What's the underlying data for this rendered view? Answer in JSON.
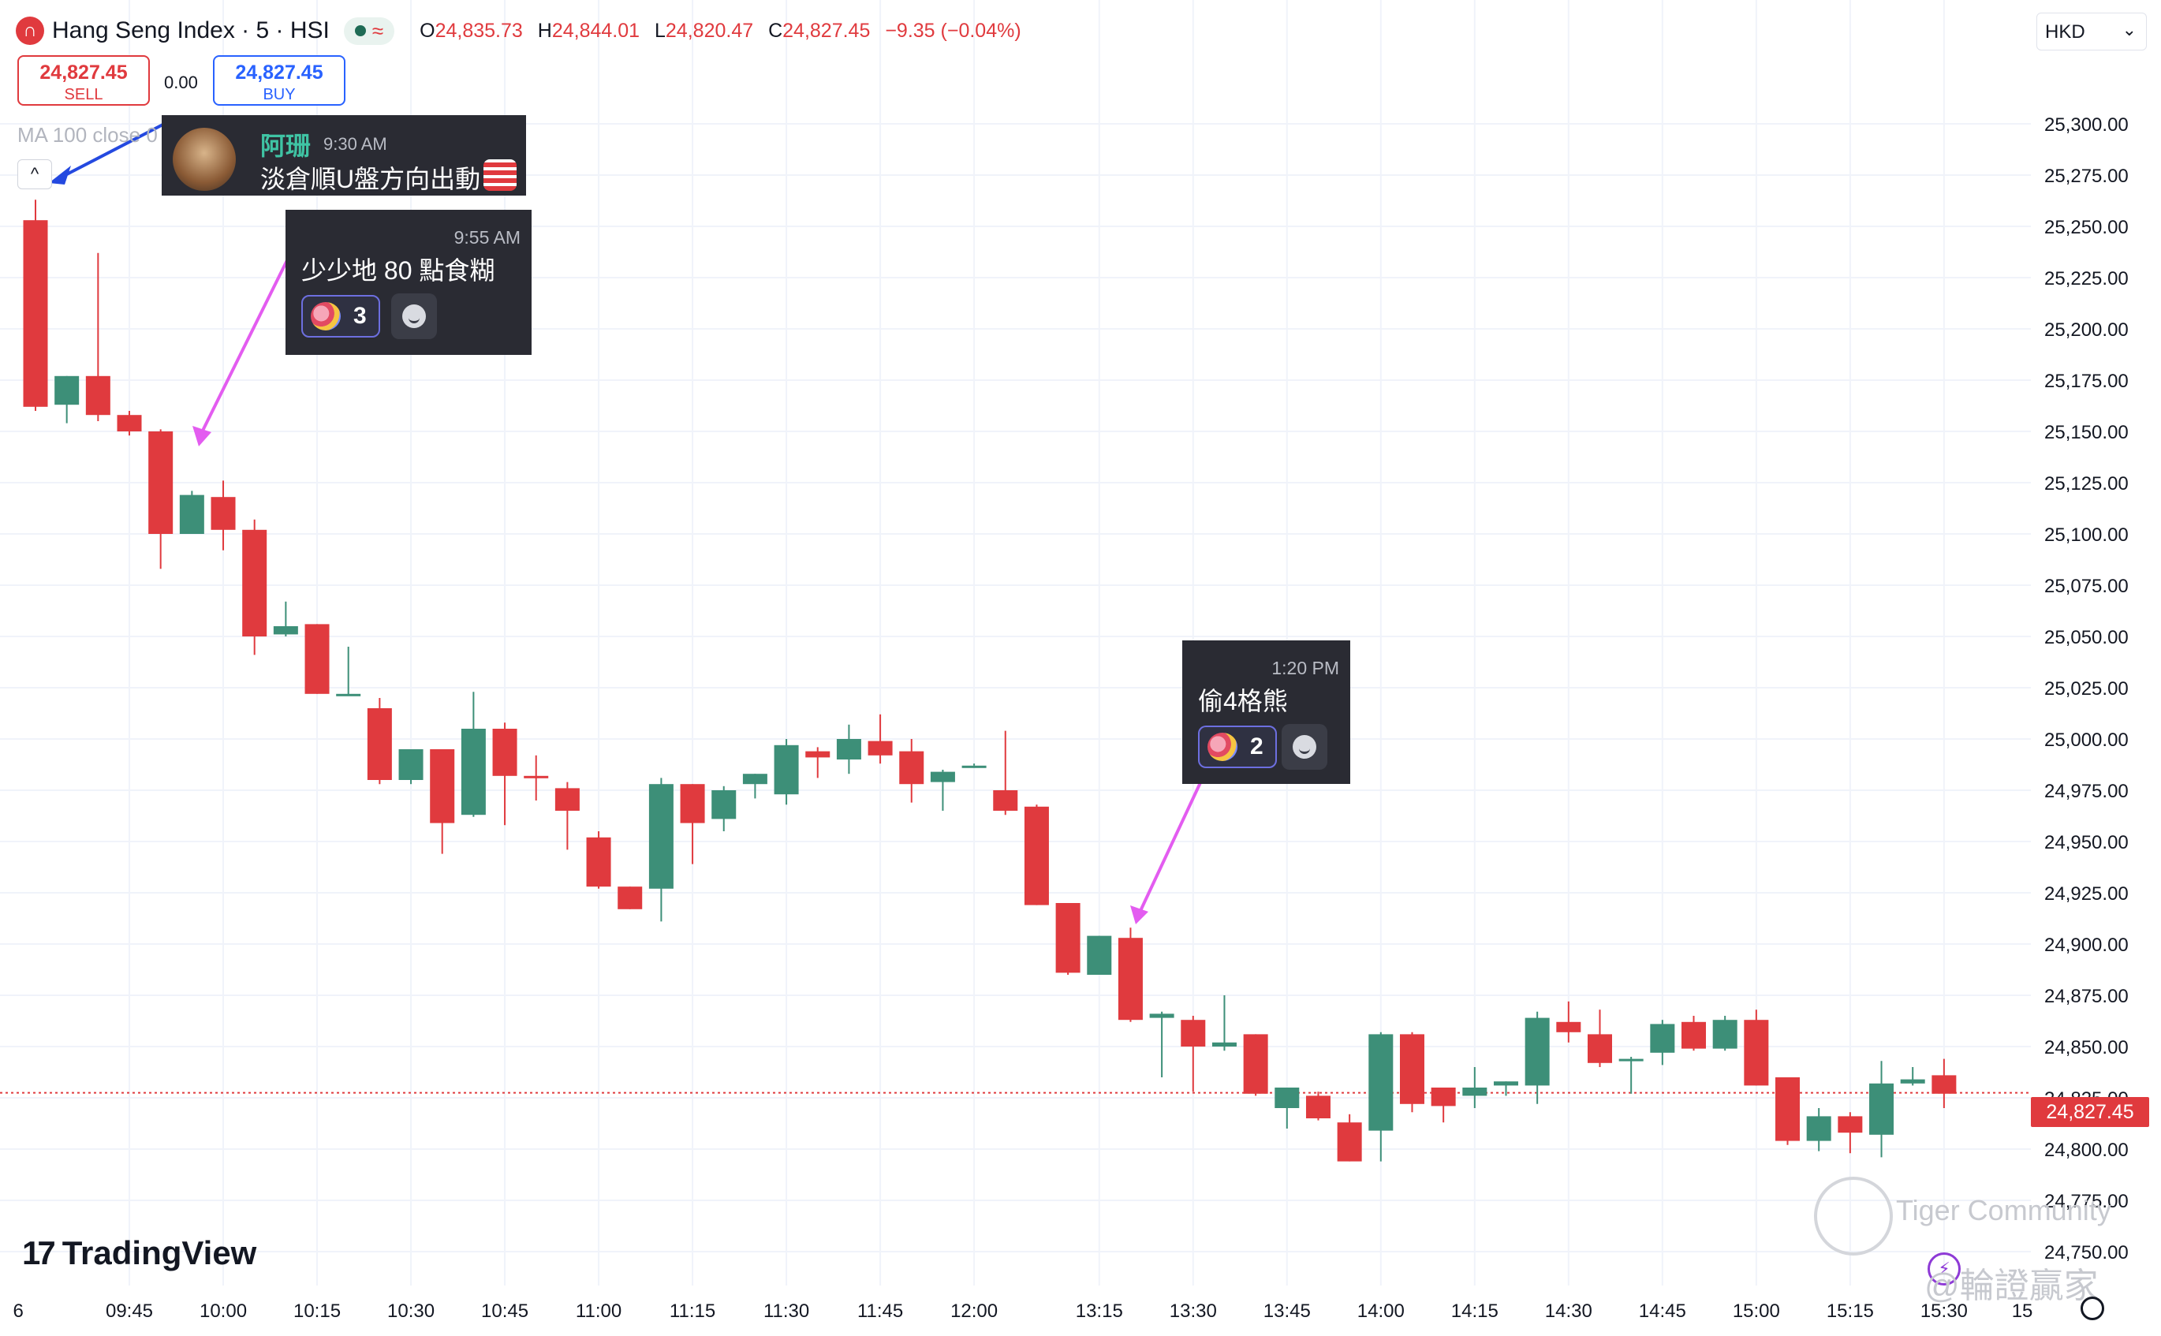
{
  "header": {
    "logo_glyph": "∩",
    "title": "Hang Seng Index · 5 · HSI",
    "market_status_glyph": "≈",
    "ohlc": {
      "o_label": "O",
      "o_value": "24,835.73",
      "h_label": "H",
      "h_value": "24,844.01",
      "l_label": "L",
      "l_value": "24,820.47",
      "c_label": "C",
      "c_value": "24,827.45",
      "change": "−9.35 (−0.04%)"
    }
  },
  "trade": {
    "sell_price": "24,827.45",
    "sell_label": "SELL",
    "spread": "0.00",
    "buy_price": "24,827.45",
    "buy_label": "BUY"
  },
  "indicator": {
    "ma_label": "MA 100 close 0",
    "collapse_glyph": "^"
  },
  "currency": {
    "value": "HKD",
    "chevron": "⌄"
  },
  "last_price_tag": "24,827.45",
  "branding": {
    "mark": "17",
    "name": "TradingView"
  },
  "comments": [
    {
      "author": "阿珊",
      "time": "9:30 AM",
      "text": "淡倉順U盤方向出動"
    },
    {
      "time": "9:55 AM",
      "text": "少少地 80 點食糊",
      "reaction_count": "3"
    },
    {
      "time": "1:20 PM",
      "text": "偷4格熊",
      "reaction_count": "2"
    }
  ],
  "watermark": {
    "line1": "Tiger Community",
    "line2": "@輪證贏家"
  },
  "colors": {
    "up": "#3d8f78",
    "down": "#e03a3e",
    "grid": "#f0f3fa",
    "arrow_blue": "#2449e0",
    "arrow_pink": "#e35cf0"
  },
  "chart_data": {
    "type": "candlestick",
    "title": "Hang Seng Index · 5 · HSI",
    "ylim": [
      24740,
      25320
    ],
    "y_ticks": [
      "25,300.00",
      "25,275.00",
      "25,250.00",
      "25,225.00",
      "25,200.00",
      "25,175.00",
      "25,150.00",
      "25,125.00",
      "25,100.00",
      "25,075.00",
      "25,050.00",
      "25,025.00",
      "25,000.00",
      "24,975.00",
      "24,950.00",
      "24,925.00",
      "24,900.00",
      "24,875.00",
      "24,850.00",
      "24,825.00",
      "24,800.00",
      "24,775.00",
      "24,750.00"
    ],
    "x_ticks": [
      {
        "label": "6",
        "index": -0.55
      },
      {
        "label": "09:45",
        "index": 3
      },
      {
        "label": "10:00",
        "index": 6
      },
      {
        "label": "10:15",
        "index": 9
      },
      {
        "label": "10:30",
        "index": 12
      },
      {
        "label": "10:45",
        "index": 15
      },
      {
        "label": "11:00",
        "index": 18
      },
      {
        "label": "11:15",
        "index": 21
      },
      {
        "label": "11:30",
        "index": 24
      },
      {
        "label": "11:45",
        "index": 27
      },
      {
        "label": "12:00",
        "index": 30
      },
      {
        "label": "13:15",
        "index": 34
      },
      {
        "label": "13:30",
        "index": 37
      },
      {
        "label": "13:45",
        "index": 40
      },
      {
        "label": "14:00",
        "index": 43
      },
      {
        "label": "14:15",
        "index": 46
      },
      {
        "label": "14:30",
        "index": 49
      },
      {
        "label": "14:45",
        "index": 52
      },
      {
        "label": "15:00",
        "index": 55
      },
      {
        "label": "15:15",
        "index": 58
      },
      {
        "label": "15:30",
        "index": 61
      },
      {
        "label": "15",
        "index": 63.5
      }
    ],
    "last_price": 24827.45,
    "candles": [
      [
        25253,
        25263,
        25160,
        25162
      ],
      [
        25163,
        25177,
        25154,
        25177
      ],
      [
        25177,
        25237,
        25155,
        25158
      ],
      [
        25158,
        25160,
        25148,
        25150
      ],
      [
        25150,
        25151,
        25083,
        25100
      ],
      [
        25100,
        25121,
        25100,
        25119
      ],
      [
        25118,
        25126,
        25092,
        25102
      ],
      [
        25102,
        25107,
        25041,
        25050
      ],
      [
        25051,
        25067,
        25050,
        25055
      ],
      [
        25056,
        25056,
        25022,
        25022
      ],
      [
        25022,
        25045,
        25021,
        25022
      ],
      [
        25015,
        25020,
        24978,
        24980
      ],
      [
        24980,
        24995,
        24978,
        24995
      ],
      [
        24995,
        24995,
        24944,
        24959
      ],
      [
        24963,
        25023,
        24962,
        25005
      ],
      [
        25005,
        25008,
        24958,
        24982
      ],
      [
        24982,
        24992,
        24970,
        24981
      ],
      [
        24976,
        24979,
        24946,
        24965
      ],
      [
        24952,
        24955,
        24927,
        24928
      ],
      [
        24928,
        24925,
        24917,
        24917
      ],
      [
        24927,
        24981,
        24911,
        24978
      ],
      [
        24978,
        24978,
        24939,
        24959
      ],
      [
        24961,
        24977,
        24955,
        24975
      ],
      [
        24978,
        24983,
        24971,
        24983
      ],
      [
        24973,
        25000,
        24968,
        24997
      ],
      [
        24994,
        24996,
        24981,
        24991
      ],
      [
        24990,
        25007,
        24983,
        25000
      ],
      [
        24999,
        25012,
        24988,
        24992
      ],
      [
        24994,
        25000,
        24969,
        24978
      ],
      [
        24979,
        24985,
        24965,
        24984
      ],
      [
        24987,
        24988,
        24987,
        24987
      ],
      [
        24975,
        25004,
        24963,
        24965
      ],
      [
        24967,
        24968,
        24919,
        24919
      ],
      [
        24920,
        24920,
        24885,
        24886
      ],
      [
        24885,
        24904,
        24885,
        24904
      ],
      [
        24903,
        24908,
        24862,
        24863
      ],
      [
        24864,
        24867,
        24835,
        24866
      ],
      [
        24863,
        24865,
        24828,
        24850
      ],
      [
        24850,
        24875,
        24848,
        24852
      ],
      [
        24856,
        24856,
        24826,
        24827
      ],
      [
        24820,
        24830,
        24810,
        24830
      ],
      [
        24826,
        24828,
        24814,
        24815
      ],
      [
        24813,
        24817,
        24799,
        24794
      ],
      [
        24809,
        24857,
        24794,
        24856
      ],
      [
        24856,
        24857,
        24818,
        24822
      ],
      [
        24830,
        24830,
        24813,
        24821
      ],
      [
        24826,
        24840,
        24820,
        24830
      ],
      [
        24831,
        24832,
        24826,
        24833
      ],
      [
        24831,
        24867,
        24822,
        24864
      ],
      [
        24862,
        24872,
        24852,
        24857
      ],
      [
        24856,
        24868,
        24840,
        24842
      ],
      [
        24844,
        24845,
        24827,
        24844
      ],
      [
        24847,
        24863,
        24841,
        24861
      ],
      [
        24862,
        24865,
        24848,
        24849
      ],
      [
        24849,
        24865,
        24848,
        24863
      ],
      [
        24863,
        24868,
        24831,
        24831
      ],
      [
        24835,
        24835,
        24802,
        24804
      ],
      [
        24804,
        24820,
        24799,
        24816
      ],
      [
        24816,
        24818,
        24798,
        24808
      ],
      [
        24807,
        24843,
        24796,
        24832
      ],
      [
        24832,
        24840,
        24831,
        24834
      ],
      [
        24836,
        24844,
        24820,
        24827
      ]
    ]
  }
}
